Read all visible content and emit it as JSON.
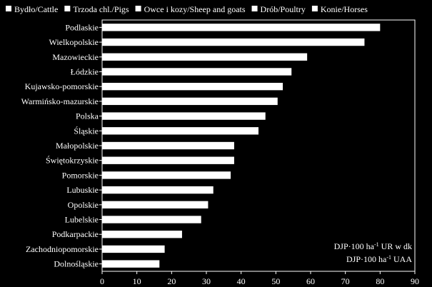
{
  "chart_data": {
    "type": "bar",
    "orientation": "horizontal",
    "legend": {
      "placement": "top",
      "entries": [
        "Bydło/Cattle",
        "Trzoda chl./Pigs",
        "Owce i kozy/Sheep and goats",
        "Drób/Poultry",
        "Konie/Horses"
      ]
    },
    "categories": [
      "Podlaskie",
      "Wielkopolskie",
      "Mazowieckie",
      "Łódzkie",
      "Kujawsko-pomorskie",
      "Warmińsko-mazurskie",
      "Polska",
      "Śląskie",
      "Małopolskie",
      "Świętokrzyskie",
      "Pomorskie",
      "Lubuskie",
      "Opolskie",
      "Lubelskie",
      "Podkarpackie",
      "Zachodniopomorskie",
      "Dolnośląskie"
    ],
    "values": [
      80,
      75.5,
      59,
      54.5,
      52,
      50.5,
      47,
      45,
      38,
      38,
      37,
      32,
      30.5,
      28.5,
      23,
      18,
      16.5
    ],
    "xlim": [
      0,
      90
    ],
    "xticks": [
      0,
      10,
      20,
      30,
      40,
      50,
      60,
      70,
      80,
      90
    ],
    "grid": false,
    "bar_color": "#ffffff",
    "background_color": "#000000",
    "annotation": {
      "line1": {
        "pre": "DJP·100  ha",
        "sup": "-1",
        "post": " UR w dk"
      },
      "line2": {
        "pre": "DJP·100  ha",
        "sup": "-1",
        "post": " UAA"
      }
    }
  }
}
